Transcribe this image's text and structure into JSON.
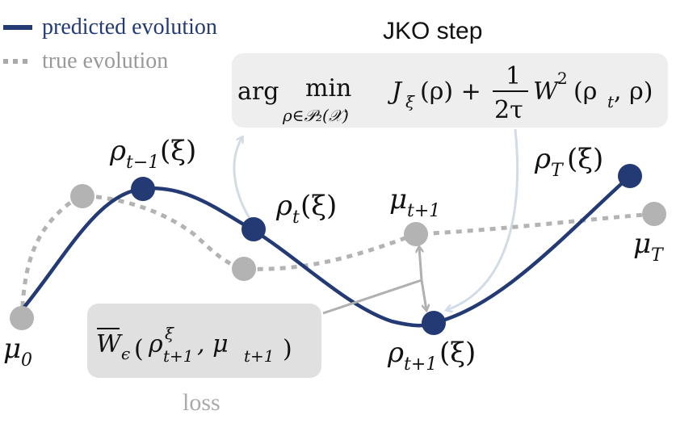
{
  "legend": {
    "predicted": {
      "label": "predicted evolution",
      "color": "#243a74"
    },
    "true": {
      "label": "true evolution",
      "color": "#a9a9a9"
    }
  },
  "jko": {
    "title": "JKO step",
    "arg": "arg",
    "min": "min",
    "min_sub": "ρ∈𝒫₂(𝒳)",
    "term1": "J",
    "term1_sub": "ξ",
    "term1_arg": "(ρ) +",
    "frac_num": "1",
    "frac_den": "2τ",
    "term2": "W",
    "term2_sup": "2",
    "term2_arg": "(ρ",
    "term2_sub": "t",
    "term2_end": ", ρ)"
  },
  "loss": {
    "word": "loss",
    "w": "W",
    "w_sub": "ϵ",
    "open": "(",
    "rho": "ρ",
    "rho_sup": "ξ",
    "rho_sub": "t+1",
    "comma_mu": ", μ",
    "mu_sub": "t+1",
    "close": ")"
  },
  "labels": {
    "rho_tm1": {
      "main": "ρ",
      "sub": "t−1",
      "tail": "(ξ)"
    },
    "rho_t": {
      "main": "ρ",
      "sub": "t",
      "tail": "(ξ)"
    },
    "rho_tp1": {
      "main": "ρ",
      "sub": "t+1",
      "tail": "(ξ)"
    },
    "rho_T": {
      "main": "ρ",
      "sub": "T",
      "tail": "(ξ)"
    },
    "mu_0": {
      "main": "μ",
      "sub": "0"
    },
    "mu_tp1": {
      "main": "μ",
      "sub": "t+1"
    },
    "mu_T": {
      "main": "μ",
      "sub": "T"
    }
  },
  "colors": {
    "predicted_node": "#243a74",
    "true_node": "#b3b3b3",
    "arrow_jko": "#d2dce6",
    "arrow_loss": "#b0b0b0",
    "box_jko": "#eeeeee",
    "box_loss": "#e0e0e0"
  }
}
